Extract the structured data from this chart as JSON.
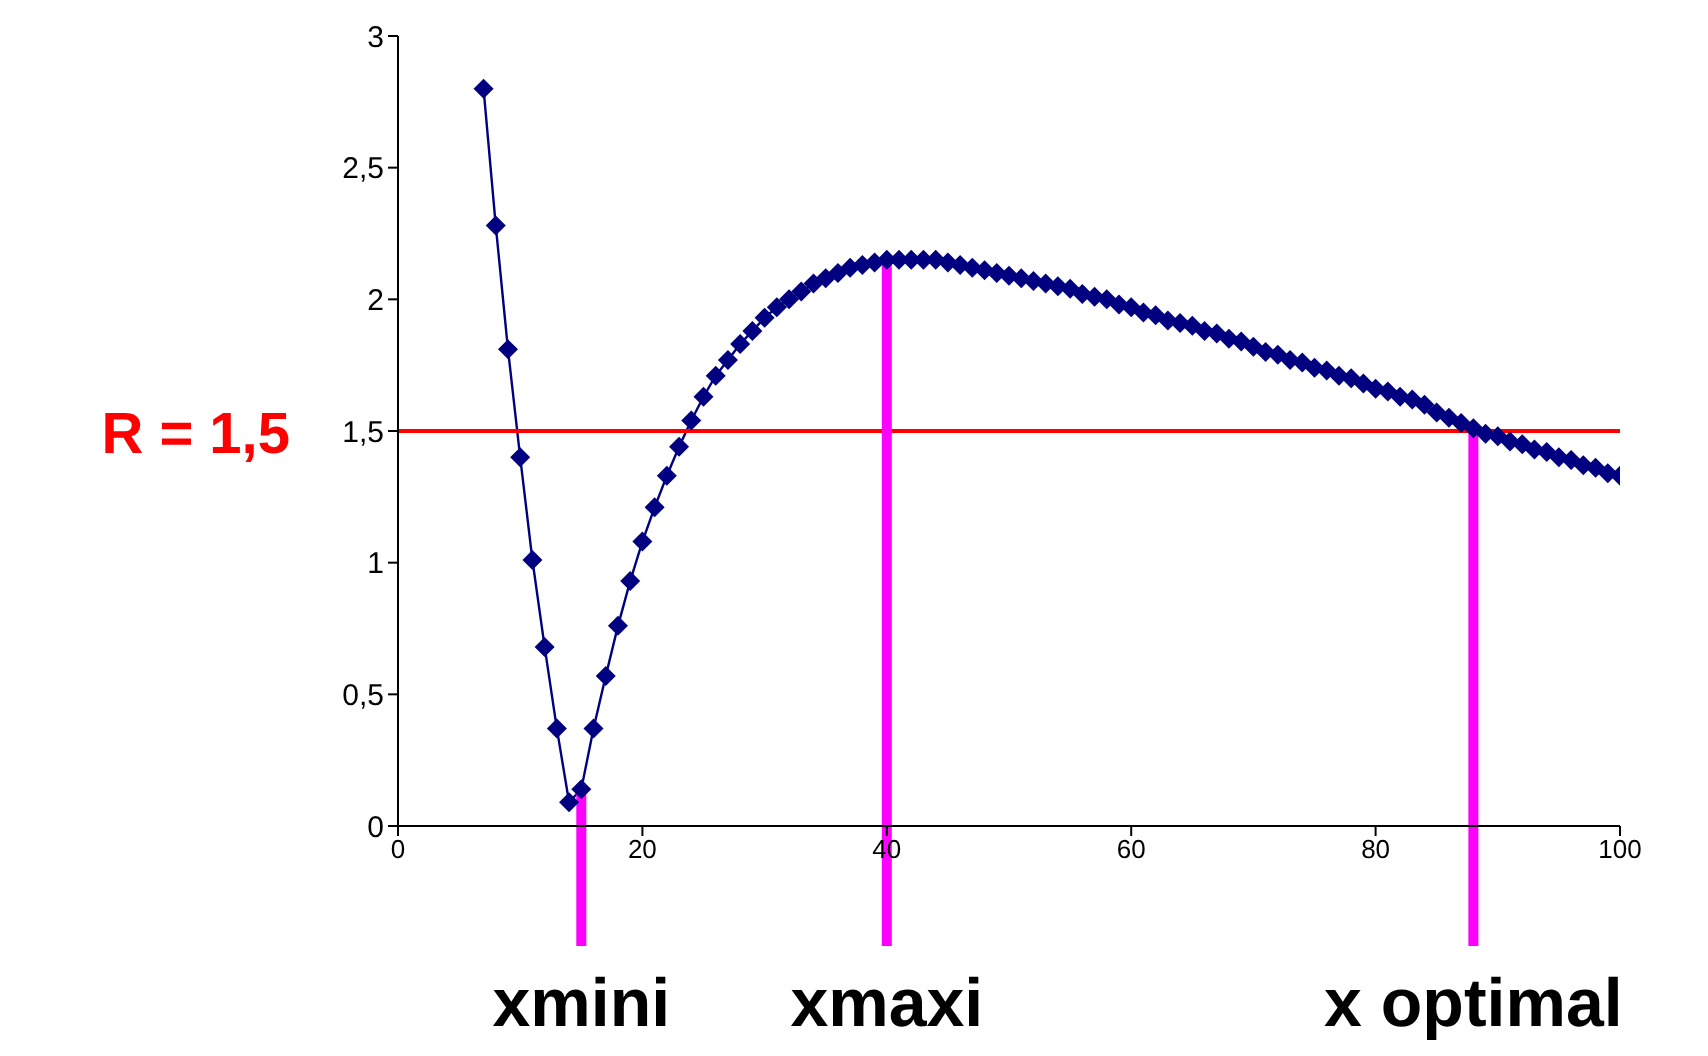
{
  "chart_data": {
    "type": "line",
    "x": [
      7,
      8,
      9,
      10,
      11,
      12,
      13,
      14,
      15,
      16,
      17,
      18,
      19,
      20,
      21,
      22,
      23,
      24,
      25,
      26,
      27,
      28,
      29,
      30,
      31,
      32,
      33,
      34,
      35,
      36,
      37,
      38,
      39,
      40,
      41,
      42,
      43,
      44,
      45,
      46,
      47,
      48,
      49,
      50,
      51,
      52,
      53,
      54,
      55,
      56,
      57,
      58,
      59,
      60,
      61,
      62,
      63,
      64,
      65,
      66,
      67,
      68,
      69,
      70,
      71,
      72,
      73,
      74,
      75,
      76,
      77,
      78,
      79,
      80,
      81,
      82,
      83,
      84,
      85,
      86,
      87,
      88,
      89,
      90,
      91,
      92,
      93,
      94,
      95,
      96,
      97,
      98,
      99,
      100
    ],
    "series": [
      {
        "color": "#000080",
        "values": [
          2.8,
          2.28,
          1.81,
          1.4,
          1.01,
          0.68,
          0.37,
          0.09,
          0.14,
          0.37,
          0.57,
          0.76,
          0.93,
          1.08,
          1.21,
          1.33,
          1.44,
          1.54,
          1.63,
          1.71,
          1.77,
          1.83,
          1.88,
          1.93,
          1.97,
          2.0,
          2.03,
          2.06,
          2.08,
          2.1,
          2.12,
          2.13,
          2.14,
          2.15,
          2.15,
          2.15,
          2.15,
          2.15,
          2.14,
          2.13,
          2.12,
          2.11,
          2.1,
          2.09,
          2.08,
          2.07,
          2.06,
          2.05,
          2.04,
          2.02,
          2.01,
          2.0,
          1.98,
          1.97,
          1.95,
          1.94,
          1.92,
          1.91,
          1.9,
          1.88,
          1.87,
          1.85,
          1.84,
          1.82,
          1.8,
          1.79,
          1.77,
          1.76,
          1.74,
          1.73,
          1.71,
          1.7,
          1.68,
          1.66,
          1.65,
          1.63,
          1.62,
          1.6,
          1.57,
          1.55,
          1.53,
          1.51,
          1.49,
          1.48,
          1.46,
          1.45,
          1.43,
          1.42,
          1.4,
          1.39,
          1.37,
          1.36,
          1.34,
          1.33
        ]
      }
    ],
    "xlim": [
      0,
      100
    ],
    "xticks": [
      0,
      20,
      40,
      60,
      80,
      100
    ],
    "ylim": [
      0,
      3
    ],
    "yticks": [
      0,
      {
        "value": 0.5,
        "label": "0,5"
      },
      1,
      {
        "value": 1.5,
        "label": "1,5"
      },
      2,
      {
        "value": 2.5,
        "label": "2,5"
      },
      3
    ],
    "marker": "diamond",
    "grid": false,
    "legend": false,
    "ref_lines": [
      {
        "axis": "y",
        "value": 1.5,
        "label": "R = 1,5",
        "color": "#ff0000"
      },
      {
        "axis": "x",
        "value": 15,
        "label": "xmini",
        "color": "#ff00ff"
      },
      {
        "axis": "x",
        "value": 40,
        "label": "xmaxi",
        "color": "#ff00ff"
      },
      {
        "axis": "x",
        "value": 88,
        "label": "x optimal",
        "color": "#ff00ff"
      }
    ]
  }
}
